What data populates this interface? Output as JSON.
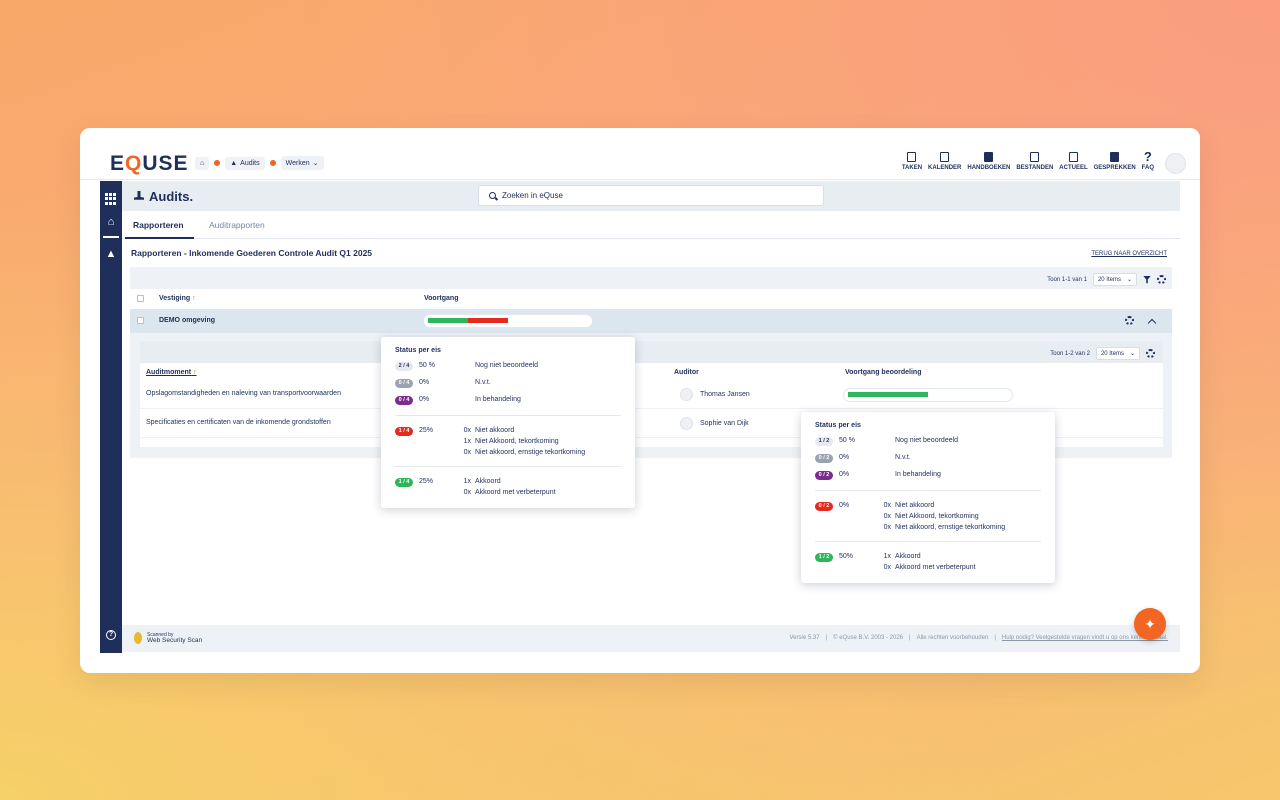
{
  "app": {
    "logo_prefix": "E",
    "logo_q": "Q",
    "logo_suffix": "USE"
  },
  "breadcrumb": {
    "audits": "Audits",
    "werken": "Werken"
  },
  "topnav": [
    {
      "label": "TAKEN",
      "icon": "clipboard-icon"
    },
    {
      "label": "KALENDER",
      "icon": "calendar-icon"
    },
    {
      "label": "HANDBOEKEN",
      "icon": "book-icon"
    },
    {
      "label": "BESTANDEN",
      "icon": "archive-icon"
    },
    {
      "label": "ACTUEEL",
      "icon": "news-icon"
    },
    {
      "label": "GESPREKKEN",
      "icon": "chat-icon"
    },
    {
      "label": "FAQ",
      "icon": "question-icon"
    }
  ],
  "module": {
    "title": "Audits.",
    "search_placeholder": "Zoeken in eQuse"
  },
  "tabs": {
    "active": "Rapporteren",
    "inactive": "Auditrapporten"
  },
  "content": {
    "title": "Rapporteren - Inkomende Goederen Controle Audit Q1 2025",
    "back_link": "TERUG NAAR OVERZICHT"
  },
  "pager": {
    "info": "Toon 1-1 van 1",
    "per_page": "20 Items"
  },
  "table": {
    "col_vestiging": "Vestiging",
    "col_voortgang": "Voortgang"
  },
  "demo_row": {
    "name": "DEMO omgeving",
    "progress": {
      "green": 0.25,
      "red": 0.25
    }
  },
  "subtable": {
    "pager_info": "Toon 1-2 van 2",
    "per_page": "20 Items",
    "col_auditmoment": "Auditmoment",
    "col_auditor": "Auditor",
    "col_voortgang": "Voortgang beoordeling",
    "rows": [
      {
        "moment": "Opslagomstandigheden en naleving van transportvoorwaarden",
        "auditor": "Thomas Jansen",
        "progress_green": 0.5
      },
      {
        "moment": "Specificaties en certificaten van de inkomende grondstoffen",
        "auditor": "Sophie van Dijk"
      }
    ]
  },
  "popup1": {
    "title": "Status per eis",
    "status": [
      {
        "badge": "2 / 4",
        "pct": "50 %",
        "label": "Nog niet beoordeeld"
      },
      {
        "badge": "0 / 4",
        "pct": "0%",
        "label": "N.v.t."
      },
      {
        "badge": "0 / 4",
        "pct": "0%",
        "label": "In behandeling"
      }
    ],
    "negative": {
      "badge": "1 / 4",
      "pct": "25%",
      "items": [
        {
          "count": "0x",
          "label": "Niet akkoord"
        },
        {
          "count": "1x",
          "label": "Niet Akkoord, tekortkoming"
        },
        {
          "count": "0x",
          "label": "Niet akkoord, ernstige tekortkoming"
        }
      ]
    },
    "positive": {
      "badge": "1 / 4",
      "pct": "25%",
      "items": [
        {
          "count": "1x",
          "label": "Akkoord"
        },
        {
          "count": "0x",
          "label": "Akkoord met verbeterpunt"
        }
      ]
    }
  },
  "popup2": {
    "title": "Status per eis",
    "status": [
      {
        "badge": "1 / 2",
        "pct": "50 %",
        "label": "Nog niet beoordeeld"
      },
      {
        "badge": "0 / 2",
        "pct": "0%",
        "label": "N.v.t."
      },
      {
        "badge": "0 / 2",
        "pct": "0%",
        "label": "In behandeling"
      }
    ],
    "negative": {
      "badge": "0 / 2",
      "pct": "0%",
      "items": [
        {
          "count": "0x",
          "label": "Niet akkoord"
        },
        {
          "count": "0x",
          "label": "Niet Akkoord, tekortkoming"
        },
        {
          "count": "0x",
          "label": "Niet akkoord, ernstige tekortkoming"
        }
      ]
    },
    "positive": {
      "badge": "1 / 2",
      "pct": "50%",
      "items": [
        {
          "count": "1x",
          "label": "Akkoord"
        },
        {
          "count": "0x",
          "label": "Akkoord met verbeterpunt"
        }
      ]
    }
  },
  "footer": {
    "scan_small": "Scanned by",
    "scan_big": "Web Security Scan",
    "version": "Versie 5.37",
    "copyright": "© eQuse B.V. 2003 - 2026",
    "rights": "Alle rechten voorbehouden",
    "help": "Hulp nodig? Veelgestelde vragen vindt u op ons kennisportaal."
  },
  "colors": {
    "navy": "#1f2f5c",
    "accent": "#f26522",
    "green": "#2fb55a",
    "red": "#e52a1e",
    "purple": "#7b2d8e"
  }
}
